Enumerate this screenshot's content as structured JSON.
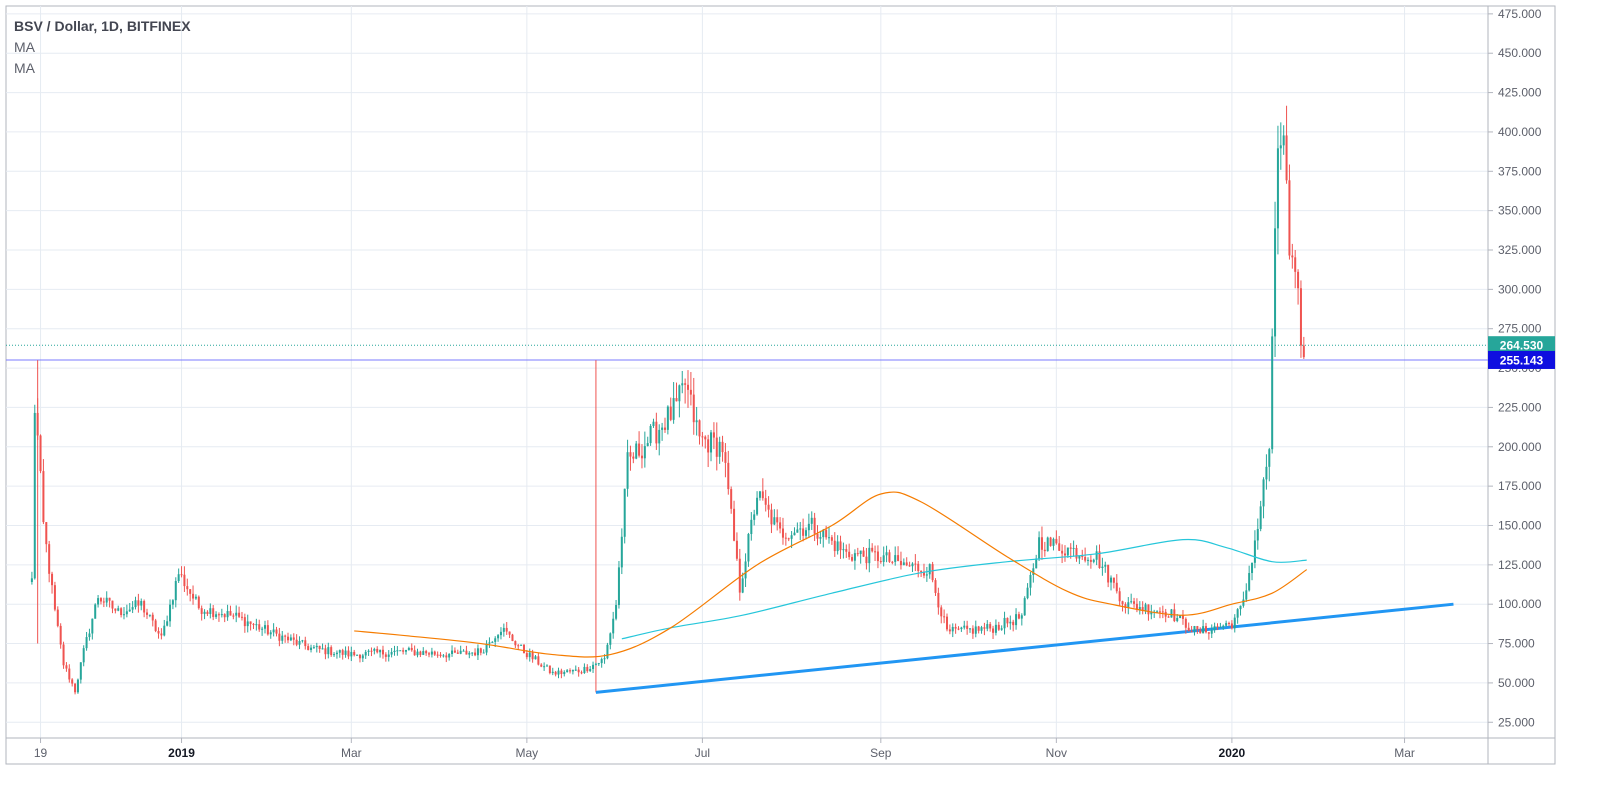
{
  "chart_data": {
    "type": "candlestick",
    "title": "BSV / Dollar, 1D, BITFINEX",
    "indicators": [
      "MA",
      "MA"
    ],
    "x_range": [
      "2018-11-01",
      "2020-03-30"
    ],
    "ylim": [
      15,
      480
    ],
    "y_ticks": [
      "25.000",
      "50.000",
      "75.000",
      "100.000",
      "125.000",
      "150.000",
      "175.000",
      "200.000",
      "225.000",
      "250.000",
      "275.000",
      "300.000",
      "325.000",
      "350.000",
      "375.000",
      "400.000",
      "425.000",
      "450.000",
      "475.000"
    ],
    "x_ticks": [
      {
        "date": "2018-11-13",
        "label": "19",
        "bold": false
      },
      {
        "date": "2019-01-01",
        "label": "2019",
        "bold": true
      },
      {
        "date": "2019-03-01",
        "label": "Mar",
        "bold": false
      },
      {
        "date": "2019-05-01",
        "label": "May",
        "bold": false
      },
      {
        "date": "2019-07-01",
        "label": "Jul",
        "bold": false
      },
      {
        "date": "2019-09-01",
        "label": "Sep",
        "bold": false
      },
      {
        "date": "2019-11-01",
        "label": "Nov",
        "bold": false
      },
      {
        "date": "2020-01-01",
        "label": "2020",
        "bold": true
      },
      {
        "date": "2020-03-01",
        "label": "Mar",
        "bold": false
      }
    ],
    "price_anchors": [
      [
        "2018-11-10",
        115
      ],
      [
        "2018-11-11",
        225
      ],
      [
        "2018-11-12",
        205
      ],
      [
        "2018-11-14",
        150
      ],
      [
        "2018-11-18",
        95
      ],
      [
        "2018-11-21",
        62
      ],
      [
        "2018-11-25",
        45
      ],
      [
        "2018-11-28",
        70
      ],
      [
        "2018-12-03",
        105
      ],
      [
        "2018-12-10",
        95
      ],
      [
        "2018-12-18",
        100
      ],
      [
        "2018-12-25",
        78
      ],
      [
        "2018-12-31",
        120
      ],
      [
        "2019-01-07",
        98
      ],
      [
        "2019-01-20",
        92
      ],
      [
        "2019-02-01",
        82
      ],
      [
        "2019-02-15",
        72
      ],
      [
        "2019-03-01",
        68
      ],
      [
        "2019-03-20",
        70
      ],
      [
        "2019-04-05",
        68
      ],
      [
        "2019-04-15",
        70
      ],
      [
        "2019-04-22",
        85
      ],
      [
        "2019-04-30",
        70
      ],
      [
        "2019-05-10",
        56
      ],
      [
        "2019-05-20",
        58
      ],
      [
        "2019-05-28",
        65
      ],
      [
        "2019-06-01",
        100
      ],
      [
        "2019-06-05",
        190
      ],
      [
        "2019-06-15",
        210
      ],
      [
        "2019-06-22",
        225
      ],
      [
        "2019-06-25",
        240
      ],
      [
        "2019-06-30",
        205
      ],
      [
        "2019-07-08",
        200
      ],
      [
        "2019-07-14",
        110
      ],
      [
        "2019-07-20",
        170
      ],
      [
        "2019-07-28",
        145
      ],
      [
        "2019-08-08",
        150
      ],
      [
        "2019-08-20",
        132
      ],
      [
        "2019-09-01",
        130
      ],
      [
        "2019-09-08",
        125
      ],
      [
        "2019-09-18",
        122
      ],
      [
        "2019-09-24",
        82
      ],
      [
        "2019-10-10",
        85
      ],
      [
        "2019-10-20",
        92
      ],
      [
        "2019-10-26",
        140
      ],
      [
        "2019-11-05",
        135
      ],
      [
        "2019-11-15",
        130
      ],
      [
        "2019-11-25",
        100
      ],
      [
        "2019-12-10",
        95
      ],
      [
        "2019-12-20",
        82
      ],
      [
        "2020-01-01",
        88
      ],
      [
        "2020-01-05",
        100
      ],
      [
        "2020-01-10",
        150
      ],
      [
        "2020-01-14",
        200
      ],
      [
        "2020-01-17",
        390
      ],
      [
        "2020-01-19",
        400
      ],
      [
        "2020-01-21",
        320
      ],
      [
        "2020-01-24",
        290
      ],
      [
        "2020-01-26",
        255
      ]
    ],
    "series": [
      {
        "name": "MA",
        "color": "#26c6da",
        "values": [
          [
            "2019-06-03",
            78
          ],
          [
            "2019-06-20",
            85
          ],
          [
            "2019-07-15",
            93
          ],
          [
            "2019-08-15",
            107
          ],
          [
            "2019-09-15",
            120
          ],
          [
            "2019-10-15",
            127
          ],
          [
            "2019-11-15",
            132
          ],
          [
            "2019-12-15",
            141
          ],
          [
            "2019-12-30",
            136
          ],
          [
            "2020-01-15",
            127
          ],
          [
            "2020-01-27",
            128
          ]
        ]
      },
      {
        "name": "MA",
        "color": "#f57c00",
        "values": [
          [
            "2019-03-02",
            83
          ],
          [
            "2019-03-20",
            80
          ],
          [
            "2019-04-15",
            75
          ],
          [
            "2019-05-10",
            68
          ],
          [
            "2019-05-30",
            68
          ],
          [
            "2019-06-20",
            85
          ],
          [
            "2019-07-20",
            125
          ],
          [
            "2019-08-15",
            150
          ],
          [
            "2019-09-01",
            170
          ],
          [
            "2019-09-15",
            165
          ],
          [
            "2019-10-15",
            130
          ],
          [
            "2019-11-05",
            108
          ],
          [
            "2019-11-20",
            100
          ],
          [
            "2019-12-15",
            93
          ],
          [
            "2020-01-01",
            100
          ],
          [
            "2020-01-15",
            107
          ],
          [
            "2020-01-27",
            122
          ]
        ]
      }
    ],
    "annotations": {
      "support_trendline": {
        "from": [
          "2019-05-25",
          44
        ],
        "to": [
          "2020-03-18",
          100
        ],
        "color": "#2196f3"
      },
      "resistance_level": {
        "value": 255.143,
        "label": "255.143",
        "color": "#3d3dff"
      },
      "last_price": {
        "value": 264.53,
        "label": "264.530",
        "color": "#26a69a"
      },
      "marker_lines": [
        {
          "date": "2018-11-12",
          "from": 75,
          "to": 255
        },
        {
          "date": "2019-05-25",
          "from": 44,
          "to": 255
        }
      ]
    },
    "colors": {
      "up": "#26a69a",
      "down": "#ef5350",
      "grid": "#e6ebf2"
    }
  }
}
